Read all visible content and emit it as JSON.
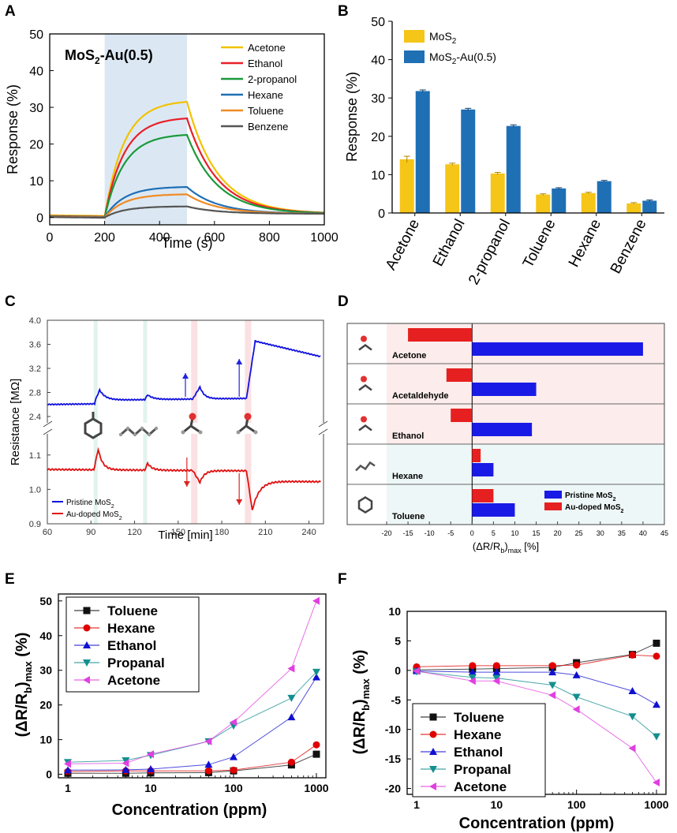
{
  "panels": {
    "A": {
      "letter": "A",
      "chart_data": {
        "type": "line",
        "title": "MoS2-Au(0.5)",
        "title_main": "MoS",
        "title_sub": "2",
        "title_tail": "-Au(0.5)",
        "xlabel": "Time (s)",
        "ylabel": "Response (%)",
        "xlim": [
          0,
          1000
        ],
        "ylim": [
          -2,
          50
        ],
        "xticks": [
          0,
          200,
          400,
          600,
          800,
          1000
        ],
        "yticks": [
          0,
          10,
          20,
          30,
          40,
          50
        ],
        "exposure_window": [
          200,
          500
        ],
        "series": [
          {
            "name": "Acetone",
            "color": "#f2c200",
            "peak": 31.5,
            "baseline": 0.5
          },
          {
            "name": "Ethanol",
            "color": "#e8202a",
            "peak": 27.0,
            "baseline": 0.3
          },
          {
            "name": "2-propanol",
            "color": "#1a9a3a",
            "peak": 22.5,
            "baseline": 0.2
          },
          {
            "name": "Hexane",
            "color": "#1f6fb5",
            "peak": 8.3,
            "baseline": 0.2
          },
          {
            "name": "Toluene",
            "color": "#f08a24",
            "peak": 6.3,
            "baseline": 0.1
          },
          {
            "name": "Benzene",
            "color": "#555555",
            "peak": 3.0,
            "baseline": 0.0
          }
        ]
      }
    },
    "B": {
      "letter": "B",
      "chart_data": {
        "type": "bar",
        "categories": [
          "Acetone",
          "Ethanol",
          "2-propanol",
          "Toluene",
          "Hexane",
          "Benzene"
        ],
        "series": [
          {
            "name": "MoS2",
            "label_main": "MoS",
            "label_sub": "2",
            "label_tail": "",
            "color": "#f5c518",
            "values": [
              14.0,
              12.7,
              10.3,
              4.8,
              5.2,
              2.5
            ],
            "errors": [
              0.8,
              0.3,
              0.3,
              0.2,
              0.2,
              0.2
            ]
          },
          {
            "name": "MoS2-Au(0.5)",
            "label_main": "MoS",
            "label_sub": "2",
            "label_tail": "-Au(0.5)",
            "color": "#1f6fb5",
            "values": [
              31.8,
              27.0,
              22.7,
              6.4,
              8.3,
              3.2
            ],
            "errors": [
              0.3,
              0.3,
              0.3,
              0.2,
              0.2,
              0.2
            ]
          }
        ],
        "ylabel": "Response (%)",
        "ylim": [
          0,
          50
        ],
        "yticks": [
          0,
          10,
          20,
          30,
          40,
          50
        ]
      }
    },
    "C": {
      "letter": "C",
      "chart_data": {
        "type": "line",
        "xlabel": "Time [min]",
        "ylabel": "Resistance [MΩ]",
        "xlim": [
          60,
          250
        ],
        "xticks": [
          60,
          90,
          120,
          150,
          180,
          210,
          240
        ],
        "upper_ylim": [
          2.4,
          4.0
        ],
        "upper_yticks": [
          "2.4",
          "2.8",
          "3.2",
          "3.6",
          "4.0"
        ],
        "lower_ylim": [
          0.9,
          1.15
        ],
        "lower_yticks": [
          "0.9",
          "1.0",
          "1.1"
        ],
        "series": [
          {
            "name": "Pristine MoS2",
            "label_main": "Pristine MoS",
            "label_sub": "2",
            "color": "#1010e0"
          },
          {
            "name": "Au-doped MoS2",
            "label_main": "Au-doped MoS",
            "label_sub": "2",
            "color": "#e01010"
          }
        ],
        "injection_times": [
          93,
          127,
          160,
          197
        ]
      }
    },
    "D": {
      "letter": "D",
      "chart_data": {
        "type": "bar",
        "orientation": "horizontal",
        "categories": [
          "Acetone",
          "Acetaldehyde",
          "Ethanol",
          "Hexane",
          "Toluene"
        ],
        "series": [
          {
            "name": "Pristine MoS2",
            "label_main": "Pristine MoS",
            "label_sub": "2",
            "color": "#1a1ae6",
            "values": [
              40,
              15,
              14,
              5,
              10
            ]
          },
          {
            "name": "Au-doped MoS2",
            "label_main": "Au-doped MoS",
            "label_sub": "2",
            "color": "#e62020",
            "values": [
              -15,
              -6,
              -5,
              2,
              5
            ]
          }
        ],
        "xlabel": "(ΔR/Rb)max [%]",
        "xlabel_main": "(ΔR/R",
        "xlabel_sub_b": "b",
        "xlabel_close": ")",
        "xlabel_sub_max": "max",
        "xlabel_unit": " [%]",
        "xlim": [
          -20,
          45
        ],
        "xticks": [
          -20,
          -15,
          -10,
          -5,
          0,
          5,
          10,
          15,
          20,
          25,
          30,
          35,
          40,
          45
        ]
      }
    },
    "E": {
      "letter": "E",
      "chart_data": {
        "type": "line",
        "xscale": "log",
        "x": [
          1,
          5,
          10,
          50,
          100,
          500,
          1000
        ],
        "xticks": [
          1,
          10,
          100,
          1000
        ],
        "xlabel": "Concentration (ppm)",
        "ylabel": "(ΔR/Rb)max (%)",
        "ylabel_main": "(ΔR/R",
        "ylabel_sub_b": "b",
        "ylabel_close": ")",
        "ylabel_sub_max": "max",
        "ylabel_unit": " (%)",
        "ylim": [
          -1,
          52
        ],
        "yticks": [
          0,
          10,
          20,
          30,
          40,
          50
        ],
        "series": [
          {
            "name": "Toluene",
            "color": "#111111",
            "marker": "square",
            "values": [
              0.3,
              0.3,
              0.4,
              0.5,
              1.0,
              2.7,
              5.8
            ]
          },
          {
            "name": "Hexane",
            "color": "#e00000",
            "marker": "circle",
            "values": [
              0.8,
              1.0,
              1.0,
              1.0,
              1.2,
              3.5,
              8.5
            ]
          },
          {
            "name": "Ethanol",
            "color": "#1010d0",
            "marker": "triangle-up",
            "values": [
              1.2,
              1.3,
              1.5,
              2.8,
              5.0,
              16.5,
              28.0
            ]
          },
          {
            "name": "Propanal",
            "color": "#138f8f",
            "marker": "triangle-down",
            "values": [
              3.5,
              4.0,
              5.5,
              9.5,
              14.0,
              22.0,
              29.5
            ]
          },
          {
            "name": "Acetone",
            "color": "#e040e0",
            "marker": "triangle-left",
            "values": [
              3.0,
              3.2,
              5.8,
              9.5,
              15.0,
              30.5,
              50.0
            ]
          }
        ]
      }
    },
    "F": {
      "letter": "F",
      "chart_data": {
        "type": "line",
        "xscale": "log",
        "x": [
          1,
          5,
          10,
          50,
          100,
          500,
          1000
        ],
        "xticks": [
          1,
          10,
          100,
          1000
        ],
        "xlabel": "Concentration (ppm)",
        "ylabel": "(ΔR/Rb)max (%)",
        "ylabel_main": "(ΔR/R",
        "ylabel_sub_b": "b",
        "ylabel_close": ")",
        "ylabel_sub_max": "max",
        "ylabel_unit": " (%)",
        "ylim": [
          -21,
          10
        ],
        "yticks": [
          10,
          5,
          0,
          -5,
          -10,
          -15,
          -20
        ],
        "series": [
          {
            "name": "Toluene",
            "color": "#111111",
            "marker": "square",
            "values": [
              0.1,
              0.2,
              0.3,
              0.5,
              1.3,
              2.7,
              4.6
            ]
          },
          {
            "name": "Hexane",
            "color": "#e00000",
            "marker": "circle",
            "values": [
              0.6,
              0.8,
              0.8,
              0.8,
              0.9,
              2.6,
              2.4
            ]
          },
          {
            "name": "Ethanol",
            "color": "#1010d0",
            "marker": "triangle-up",
            "values": [
              -0.1,
              -0.3,
              -0.3,
              -0.3,
              -0.8,
              -3.5,
              -5.8
            ]
          },
          {
            "name": "Propanal",
            "color": "#138f8f",
            "marker": "triangle-down",
            "values": [
              -0.2,
              -1.2,
              -1.3,
              -2.5,
              -4.5,
              -7.8,
              -11.2
            ]
          },
          {
            "name": "Acetone",
            "color": "#e040e0",
            "marker": "triangle-left",
            "values": [
              -0.1,
              -1.8,
              -1.8,
              -4.2,
              -6.6,
              -13.2,
              -19.0
            ]
          }
        ]
      }
    }
  }
}
